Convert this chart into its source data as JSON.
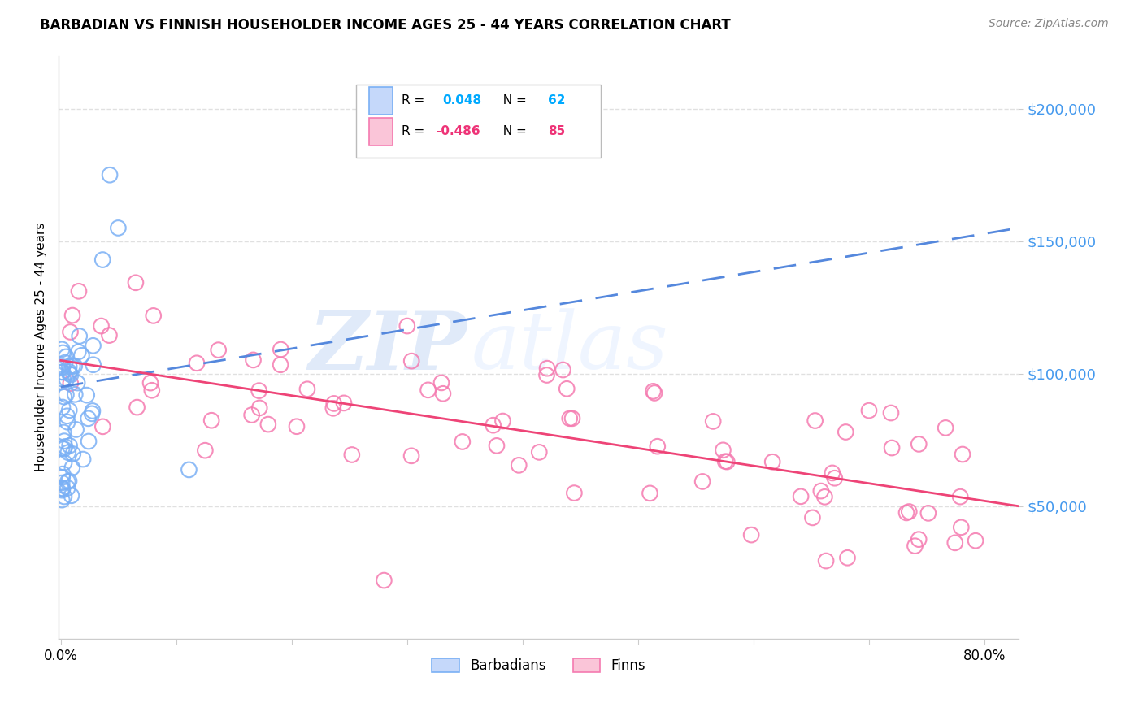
{
  "title": "BARBADIAN VS FINNISH HOUSEHOLDER INCOME AGES 25 - 44 YEARS CORRELATION CHART",
  "source": "Source: ZipAtlas.com",
  "ylabel": "Householder Income Ages 25 - 44 years",
  "ytick_labels": [
    "$50,000",
    "$100,000",
    "$150,000",
    "$200,000"
  ],
  "ytick_values": [
    50000,
    100000,
    150000,
    200000
  ],
  "ymin": 0,
  "ymax": 220000,
  "xmin": -0.002,
  "xmax": 0.83,
  "barbadian_color": "#7ab0f5",
  "finn_color": "#f57ab0",
  "trend_barbadian_color": "#5588dd",
  "trend_finn_color": "#ee4477",
  "ytick_color": "#4499ee",
  "background_color": "#ffffff",
  "grid_color": "#dddddd"
}
